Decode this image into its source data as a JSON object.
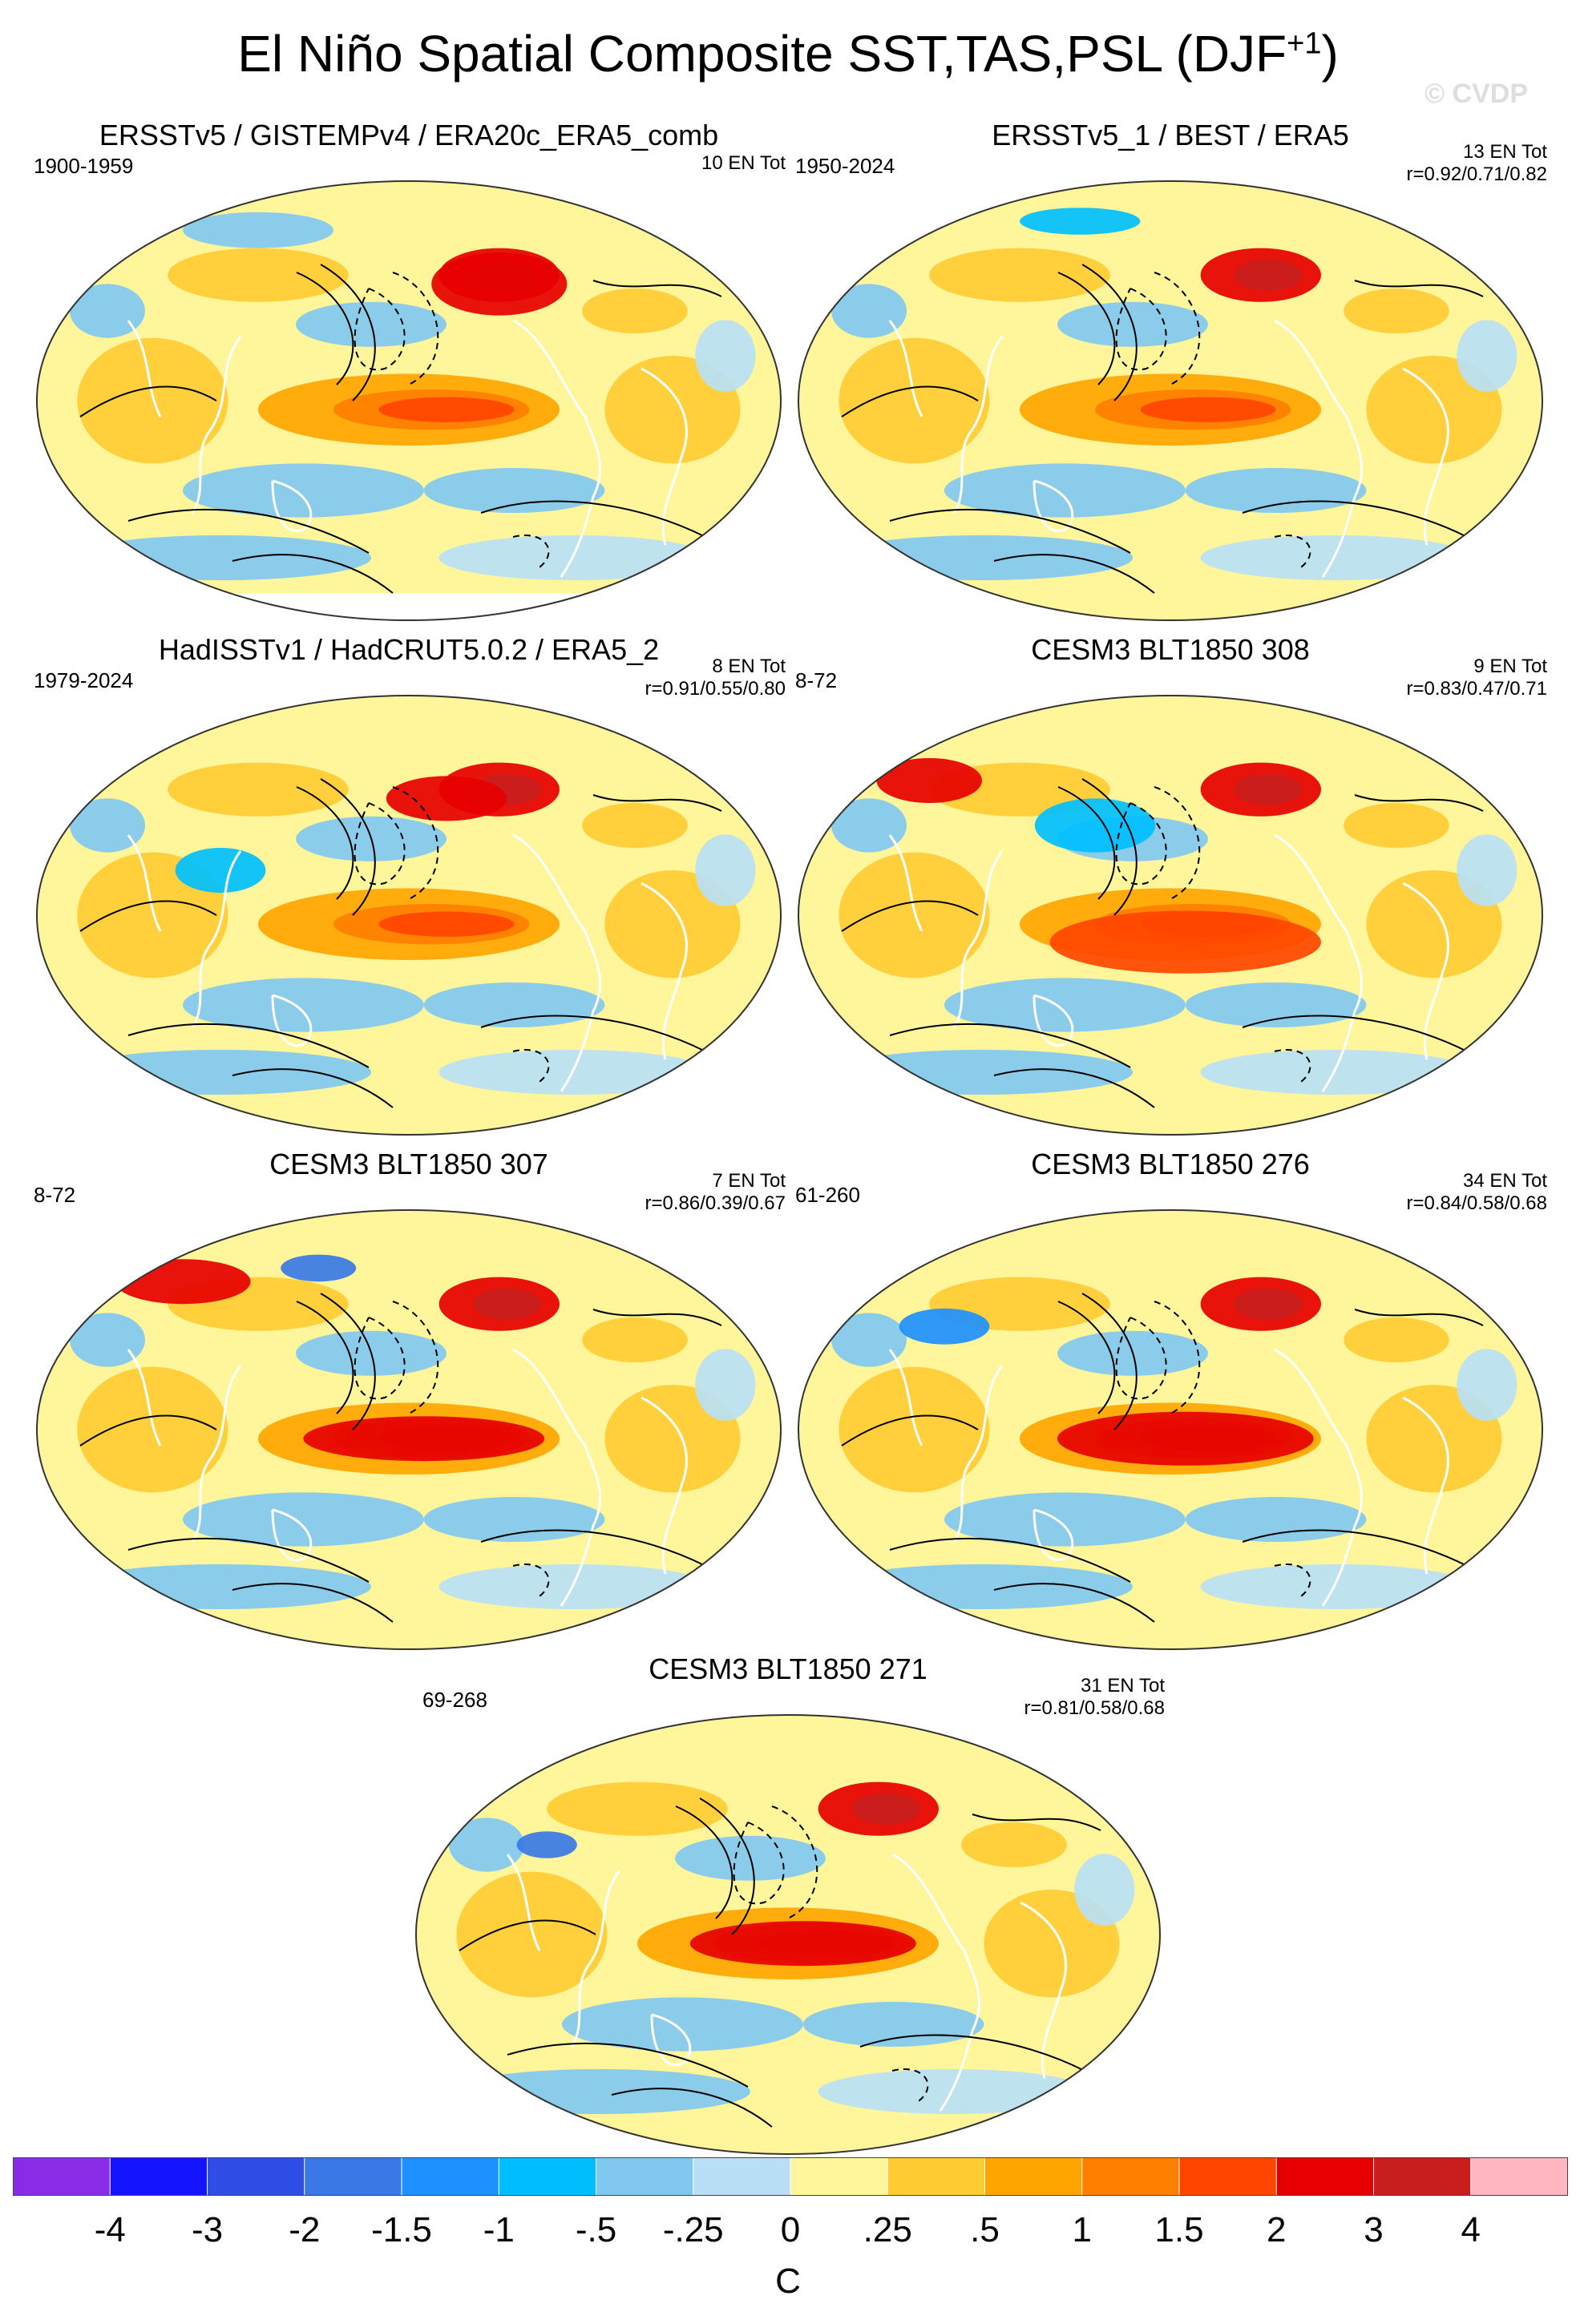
{
  "title": {
    "main": "El Niño Spatial Composite SST,TAS,PSL (DJF",
    "superscript": "+1",
    "close": ")"
  },
  "watermark": "© CVDP",
  "panels": [
    {
      "title": "ERSSTv5 / GISTEMPv4 / ERA20c_ERA5_comb",
      "period": "1900-1959",
      "count": "10 EN Tot",
      "r": ""
    },
    {
      "title": "ERSSTv5_1 / BEST / ERA5",
      "period": "1950-2024",
      "count": "13 EN Tot",
      "r": "r=0.92/0.71/0.82"
    },
    {
      "title": "HadISSTv1 / HadCRUT5.0.2 / ERA5_2",
      "period": "1979-2024",
      "count": "8 EN Tot",
      "r": "r=0.91/0.55/0.80"
    },
    {
      "title": "CESM3 BLT1850 308",
      "period": "8-72",
      "count": "9 EN Tot",
      "r": "r=0.83/0.47/0.71"
    },
    {
      "title": "CESM3 BLT1850 307",
      "period": "8-72",
      "count": "7 EN Tot",
      "r": "r=0.86/0.39/0.67"
    },
    {
      "title": "CESM3 BLT1850 276",
      "period": "61-260",
      "count": "34 EN Tot",
      "r": "r=0.84/0.58/0.68"
    },
    {
      "title": "CESM3 BLT1850 271",
      "period": "69-268",
      "count": "31 EN Tot",
      "r": "r=0.81/0.58/0.68"
    }
  ],
  "colors": {
    "levels": [
      "#8a2be8",
      "#1414ff",
      "#2e4ee6",
      "#3a78e6",
      "#1e90ff",
      "#00bfff",
      "#80c8f0",
      "#b8dff5",
      "#fff59a",
      "#ffcc33",
      "#ffa500",
      "#ff7f00",
      "#ff4500",
      "#e60000",
      "#c81e1e",
      "#ffb6c1"
    ],
    "ocean_base": "#fff59a",
    "contour": "#000000",
    "coast": "#ffffff"
  },
  "chart_data": {
    "type": "heatmap",
    "title": "El Niño Spatial Composite SST,TAS,PSL (DJF+1)",
    "projection": "global map (Winkel-tripel style)",
    "variables": [
      "SST",
      "TAS",
      "PSL"
    ],
    "season": "DJF+1",
    "colorbar": {
      "unit": "C",
      "tick_labels": [
        "-4",
        "-3",
        "-2",
        "-1.5",
        "-1",
        "-.5",
        "-.25",
        "0",
        ".25",
        ".5",
        "1",
        "1.5",
        "2",
        "3",
        "4"
      ],
      "bins": 16
    },
    "panels": [
      {
        "name": "ERSSTv5 / GISTEMPv4 / ERA20c_ERA5_comb",
        "years": "1900-1959",
        "events": 10,
        "pattern_corr": null
      },
      {
        "name": "ERSSTv5_1 / BEST / ERA5",
        "years": "1950-2024",
        "events": 13,
        "pattern_corr": [
          0.92,
          0.71,
          0.82
        ]
      },
      {
        "name": "HadISSTv1 / HadCRUT5.0.2 / ERA5_2",
        "years": "1979-2024",
        "events": 8,
        "pattern_corr": [
          0.91,
          0.55,
          0.8
        ]
      },
      {
        "name": "CESM3 BLT1850 308",
        "years": "8-72",
        "events": 9,
        "pattern_corr": [
          0.83,
          0.47,
          0.71
        ]
      },
      {
        "name": "CESM3 BLT1850 307",
        "years": "8-72",
        "events": 7,
        "pattern_corr": [
          0.86,
          0.39,
          0.67
        ]
      },
      {
        "name": "CESM3 BLT1850 276",
        "years": "61-260",
        "events": 34,
        "pattern_corr": [
          0.84,
          0.58,
          0.68
        ]
      },
      {
        "name": "CESM3 BLT1850 271",
        "years": "69-268",
        "events": 31,
        "pattern_corr": [
          0.81,
          0.58,
          0.68
        ]
      }
    ]
  }
}
